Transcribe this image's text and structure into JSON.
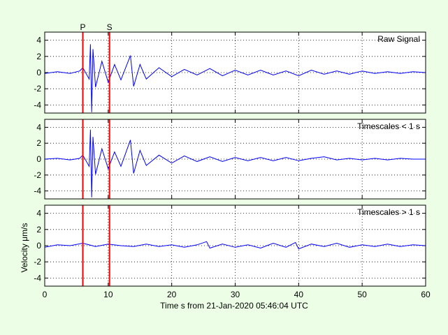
{
  "chart_data": [
    {
      "type": "line",
      "annotation": "Raw Signal",
      "xlim": [
        0,
        60
      ],
      "ylim": [
        -5,
        5
      ],
      "x_ticks": [
        "0",
        "10",
        "20",
        "30",
        "40",
        "50",
        "60"
      ],
      "y_ticks": [
        "4",
        "2",
        "0",
        "-2",
        "-4"
      ],
      "grid": true,
      "series": [
        {
          "color": "#0000ff",
          "x": [
            0,
            2,
            4,
            5.5,
            6,
            7,
            7.2,
            7.4,
            7.6,
            8,
            9,
            10,
            11,
            12,
            13.5,
            14,
            15,
            16,
            18,
            20,
            22,
            24,
            26,
            28,
            30,
            32,
            34,
            36,
            38,
            40,
            42,
            44,
            46,
            48,
            50,
            52,
            54,
            56,
            58,
            60
          ],
          "y": [
            -0.1,
            0.1,
            -0.1,
            0.2,
            0.6,
            -0.8,
            3.5,
            -4.9,
            2.9,
            -1.8,
            1.4,
            -1.2,
            1.0,
            -0.9,
            2.1,
            -1.7,
            1.0,
            -0.8,
            0.6,
            -0.5,
            0.4,
            -0.3,
            0.5,
            -0.4,
            0.3,
            -0.3,
            0.3,
            -0.3,
            0.2,
            -0.4,
            0.3,
            -0.2,
            0.2,
            -0.2,
            0.2,
            -0.1,
            0.1,
            -0.1,
            0.1,
            0.0
          ]
        }
      ],
      "markers": [
        {
          "label": "P",
          "x": 6.0,
          "color": "#ff0000"
        },
        {
          "label": "S",
          "x": 10.2,
          "color": "#ff0000"
        }
      ]
    },
    {
      "type": "line",
      "annotation": "Timescales < 1 s",
      "xlim": [
        0,
        60
      ],
      "ylim": [
        -5,
        5
      ],
      "x_ticks": [
        "0",
        "10",
        "20",
        "30",
        "40",
        "50",
        "60"
      ],
      "y_ticks": [
        "4",
        "2",
        "0",
        "-2",
        "-4"
      ],
      "grid": true,
      "series": [
        {
          "color": "#0000ff",
          "x": [
            0,
            2,
            4,
            5.5,
            6,
            7,
            7.2,
            7.4,
            7.6,
            8,
            9,
            10,
            11,
            12,
            13.5,
            14,
            15,
            16,
            18,
            20,
            22,
            24,
            26,
            28,
            30,
            32,
            34,
            36,
            38,
            40,
            42,
            44,
            46,
            48,
            50,
            52,
            54,
            56,
            58,
            60
          ],
          "y": [
            0.0,
            0.1,
            -0.1,
            0.1,
            0.5,
            -0.9,
            3.7,
            -4.8,
            2.8,
            -1.9,
            1.3,
            -1.2,
            0.9,
            -0.9,
            2.4,
            -1.8,
            1.1,
            -0.8,
            0.5,
            -0.5,
            0.4,
            -0.3,
            0.3,
            -0.3,
            0.2,
            -0.2,
            0.2,
            -0.2,
            0.2,
            -0.2,
            0.1,
            0.3,
            -0.1,
            0.1,
            -0.1,
            0.1,
            -0.1,
            0.1,
            0.0,
            0.0
          ]
        }
      ],
      "markers": [
        {
          "label": "",
          "x": 6.0,
          "color": "#ff0000"
        },
        {
          "label": "",
          "x": 10.2,
          "color": "#ff0000"
        }
      ]
    },
    {
      "type": "line",
      "annotation": "Timescales > 1 s",
      "ylabel": "Velocity μm/s",
      "xlabel": "Time s from 21-Jan-2020 05:46:04 UTC",
      "xlim": [
        0,
        60
      ],
      "ylim": [
        -5,
        5
      ],
      "x_ticks": [
        "0",
        "10",
        "20",
        "30",
        "40",
        "50",
        "60"
      ],
      "y_ticks": [
        "4",
        "2",
        "0",
        "-2",
        "-4"
      ],
      "grid": true,
      "series": [
        {
          "color": "#0000ff",
          "x": [
            0,
            2,
            4,
            6,
            8,
            10,
            12,
            14,
            16,
            18,
            20,
            22,
            24,
            25.5,
            26,
            28,
            30,
            32,
            34,
            36,
            38,
            39.5,
            40,
            42,
            44,
            46,
            48,
            50,
            52,
            54,
            56,
            58,
            60
          ],
          "y": [
            -0.2,
            0.1,
            0.0,
            0.3,
            -0.1,
            0.2,
            0.0,
            -0.1,
            0.2,
            -0.1,
            0.1,
            -0.2,
            0.1,
            0.5,
            -0.3,
            0.2,
            -0.2,
            0.1,
            -0.3,
            0.3,
            -0.2,
            0.4,
            -0.4,
            0.2,
            -0.1,
            0.3,
            -0.2,
            0.1,
            -0.1,
            0.2,
            -0.1,
            0.1,
            0.0
          ]
        }
      ],
      "markers": [
        {
          "label": "",
          "x": 6.0,
          "color": "#ff0000"
        },
        {
          "label": "",
          "x": 10.2,
          "color": "#ff0000"
        }
      ]
    }
  ]
}
